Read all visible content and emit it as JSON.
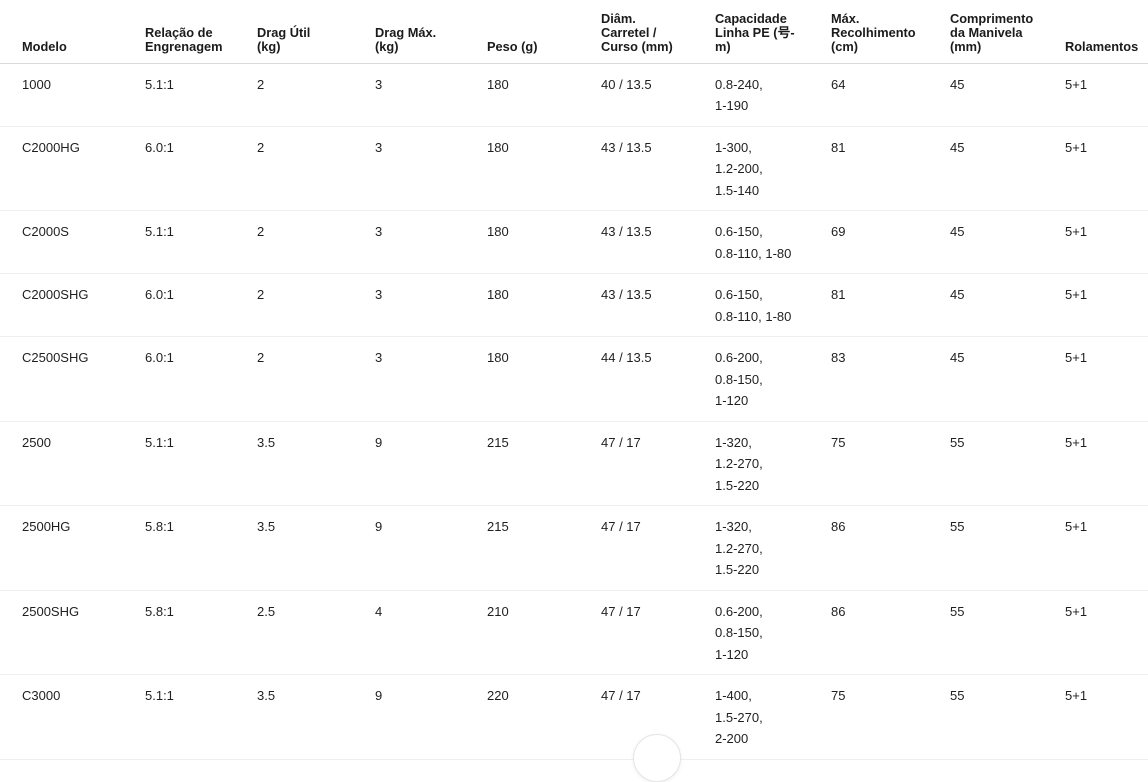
{
  "colors": {
    "background": "#ffffff",
    "text": "#1f1f1f",
    "header_border": "#d9d9d9",
    "row_border": "#efefef"
  },
  "table": {
    "columns": [
      {
        "key": "modelo",
        "label": "Modelo"
      },
      {
        "key": "relacao_engrenagem",
        "label": "Relação de\nEngrenagem"
      },
      {
        "key": "drag_util",
        "label": "Drag Útil\n(kg)"
      },
      {
        "key": "drag_max",
        "label": "Drag Máx.\n(kg)"
      },
      {
        "key": "peso",
        "label": "Peso (g)"
      },
      {
        "key": "diam_carretel_curso",
        "label": "Diâm.\nCarretel /\nCurso (mm)"
      },
      {
        "key": "capacidade_linha_pe",
        "label": "Capacidade\nLinha PE (号-\nm)"
      },
      {
        "key": "max_recolhimento",
        "label": "Máx.\nRecolhimento\n(cm)"
      },
      {
        "key": "comprimento_manivela",
        "label": "Comprimento\nda Manivela\n(mm)"
      },
      {
        "key": "rolamentos",
        "label": "Rolamentos"
      }
    ],
    "rows": [
      {
        "modelo": "1000",
        "relacao_engrenagem": "5.1:1",
        "drag_util": "2",
        "drag_max": "3",
        "peso": "180",
        "diam_carretel_curso": "40 / 13.5",
        "capacidade_linha_pe": "0.8-240,\n1-190",
        "max_recolhimento": "64",
        "comprimento_manivela": "45",
        "rolamentos": "5+1"
      },
      {
        "modelo": "C2000HG",
        "relacao_engrenagem": "6.0:1",
        "drag_util": "2",
        "drag_max": "3",
        "peso": "180",
        "diam_carretel_curso": "43 / 13.5",
        "capacidade_linha_pe": "1-300,\n1.2-200,\n1.5-140",
        "max_recolhimento": "81",
        "comprimento_manivela": "45",
        "rolamentos": "5+1"
      },
      {
        "modelo": "C2000S",
        "relacao_engrenagem": "5.1:1",
        "drag_util": "2",
        "drag_max": "3",
        "peso": "180",
        "diam_carretel_curso": "43 / 13.5",
        "capacidade_linha_pe": "0.6-150,\n0.8-110, 1-80",
        "max_recolhimento": "69",
        "comprimento_manivela": "45",
        "rolamentos": "5+1"
      },
      {
        "modelo": "C2000SHG",
        "relacao_engrenagem": "6.0:1",
        "drag_util": "2",
        "drag_max": "3",
        "peso": "180",
        "diam_carretel_curso": "43 / 13.5",
        "capacidade_linha_pe": "0.6-150,\n0.8-110, 1-80",
        "max_recolhimento": "81",
        "comprimento_manivela": "45",
        "rolamentos": "5+1"
      },
      {
        "modelo": "C2500SHG",
        "relacao_engrenagem": "6.0:1",
        "drag_util": "2",
        "drag_max": "3",
        "peso": "180",
        "diam_carretel_curso": "44 / 13.5",
        "capacidade_linha_pe": "0.6-200,\n0.8-150,\n1-120",
        "max_recolhimento": "83",
        "comprimento_manivela": "45",
        "rolamentos": "5+1"
      },
      {
        "modelo": "2500",
        "relacao_engrenagem": "5.1:1",
        "drag_util": "3.5",
        "drag_max": "9",
        "peso": "215",
        "diam_carretel_curso": "47 / 17",
        "capacidade_linha_pe": "1-320,\n1.2-270,\n1.5-220",
        "max_recolhimento": "75",
        "comprimento_manivela": "55",
        "rolamentos": "5+1"
      },
      {
        "modelo": "2500HG",
        "relacao_engrenagem": "5.8:1",
        "drag_util": "3.5",
        "drag_max": "9",
        "peso": "215",
        "diam_carretel_curso": "47 / 17",
        "capacidade_linha_pe": "1-320,\n1.2-270,\n1.5-220",
        "max_recolhimento": "86",
        "comprimento_manivela": "55",
        "rolamentos": "5+1"
      },
      {
        "modelo": "2500SHG",
        "relacao_engrenagem": "5.8:1",
        "drag_util": "2.5",
        "drag_max": "4",
        "peso": "210",
        "diam_carretel_curso": "47 / 17",
        "capacidade_linha_pe": "0.6-200,\n0.8-150,\n1-120",
        "max_recolhimento": "86",
        "comprimento_manivela": "55",
        "rolamentos": "5+1"
      },
      {
        "modelo": "C3000",
        "relacao_engrenagem": "5.1:1",
        "drag_util": "3.5",
        "drag_max": "9",
        "peso": "220",
        "diam_carretel_curso": "47 / 17",
        "capacidade_linha_pe": "1-400,\n1.5-270,\n2-200",
        "max_recolhimento": "75",
        "comprimento_manivela": "55",
        "rolamentos": "5+1"
      }
    ]
  },
  "scroll_button": {
    "visible": true
  }
}
